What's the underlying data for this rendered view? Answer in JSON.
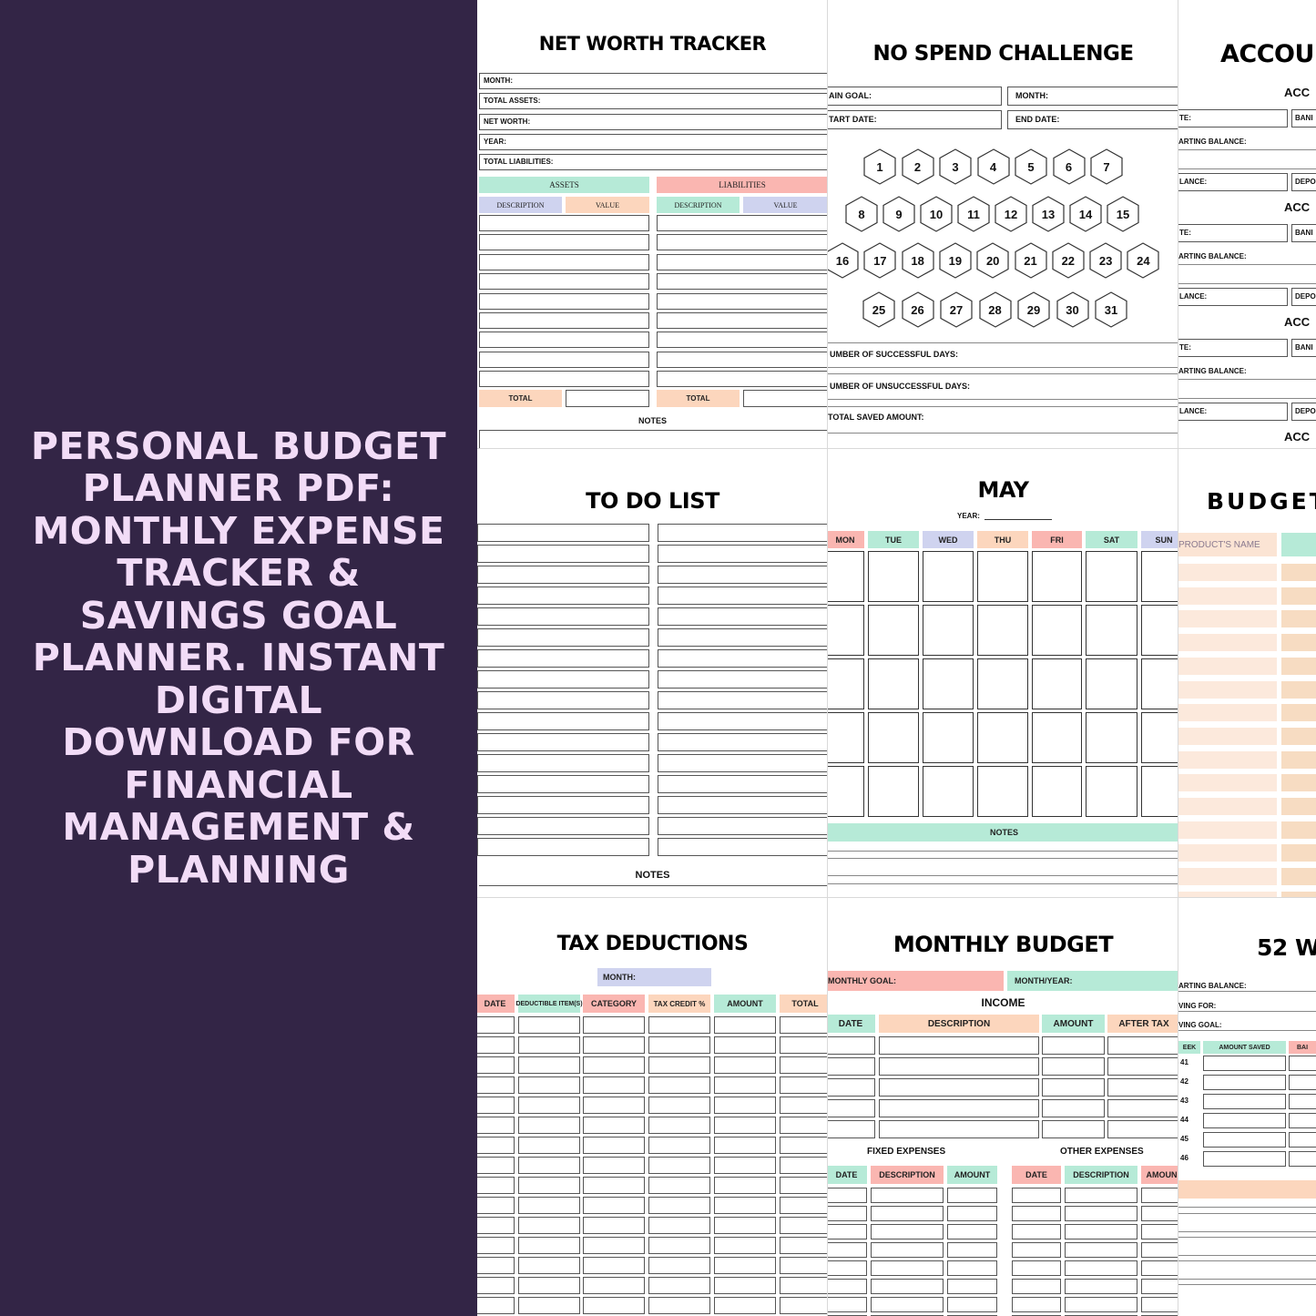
{
  "product_title": "PERSONAL BUDGET PLANNER PDF: MONTHLY EXPENSE TRACKER & SAVINGS GOAL PLANNER. INSTANT DIGITAL DOWNLOAD FOR FINANCIAL MANAGEMENT & PLANNING",
  "colors": {
    "left_bg": "#332546",
    "title_text": "#f2dcf7",
    "mint": "#b6ead7",
    "peach": "#fcd6bd",
    "pink": "#fab6b1",
    "lavender": "#cfd3ef"
  },
  "net_worth": {
    "title": "NET WORTH TRACKER",
    "fields": [
      "MONTH:",
      "TOTAL ASSETS:",
      "NET WORTH:",
      "YEAR:",
      "TOTAL LIABILITIES:"
    ],
    "assets": "ASSETS",
    "liabilities": "LIABILITIES",
    "description": "DESCRIPTION",
    "value": "VALUE",
    "total": "TOTAL",
    "notes": "NOTES"
  },
  "no_spend": {
    "title": "NO SPEND CHALLENGE",
    "main_goal": "AIN GOAL:",
    "month": "MONTH:",
    "start_date": "TART DATE:",
    "end_date": "END DATE:",
    "days": [
      "1",
      "2",
      "3",
      "4",
      "5",
      "6",
      "7",
      "8",
      "9",
      "10",
      "11",
      "12",
      "13",
      "14",
      "15",
      "16",
      "17",
      "18",
      "19",
      "20",
      "21",
      "22",
      "23",
      "24",
      "25",
      "26",
      "27",
      "28",
      "29",
      "30",
      "31"
    ],
    "successful": "UMBER OF SUCCESSFUL DAYS:",
    "unsuccessful": "UMBER OF UNSUCCESSFUL DAYS:",
    "saved": "TOTAL SAVED AMOUNT:"
  },
  "accounts": {
    "title": "ACCOU",
    "sub": "ACC",
    "te": "TE:",
    "bank": "BANI",
    "starting": "ARTING BALANCE:",
    "balance": "LANCE:",
    "dep": "DEPO",
    "sub_last": "ACC"
  },
  "todo": {
    "title": "TO DO LIST",
    "notes": "NOTES"
  },
  "may": {
    "title": "MAY",
    "year": "YEAR:",
    "days": [
      "MON",
      "TUE",
      "WED",
      "THU",
      "FRI",
      "SAT",
      "SUN"
    ],
    "notes": "NOTES"
  },
  "budget": {
    "title": "BUDGET",
    "product_name": "PRODUCT'S NAME"
  },
  "tax": {
    "title": "TAX  DEDUCTIONS",
    "month": "MONTH:",
    "headers": [
      "DATE",
      "DEDUCTIBLE ITEM(S)",
      "CATEGORY",
      "TAX CREDIT %",
      "AMOUNT",
      "TOTAL"
    ]
  },
  "monthly_budget": {
    "title": "MONTHLY BUDGET",
    "monthly_goal": "MONTHLY GOAL:",
    "month_year": "MONTH/YEAR:",
    "income": "INCOME",
    "income_headers": [
      "DATE",
      "DESCRIPTION",
      "AMOUNT",
      "AFTER TAX"
    ],
    "fixed": "FIXED EXPENSES",
    "other": "OTHER EXPENSES",
    "exp_headers": [
      "DATE",
      "DESCRIPTION",
      "AMOUNT"
    ],
    "other_headers": [
      "DATE",
      "DESCRIPTION",
      "AMOUN"
    ]
  },
  "week52": {
    "title": "52 W",
    "starting": "ARTING BALANCE:",
    "saving_for": "VING FOR:",
    "goal": "VING GOAL:",
    "week": "EEK",
    "amount_saved": "AMOUNT SAVED",
    "bal": "BAI",
    "weeks": [
      "41",
      "42",
      "43",
      "44",
      "45",
      "46"
    ]
  }
}
